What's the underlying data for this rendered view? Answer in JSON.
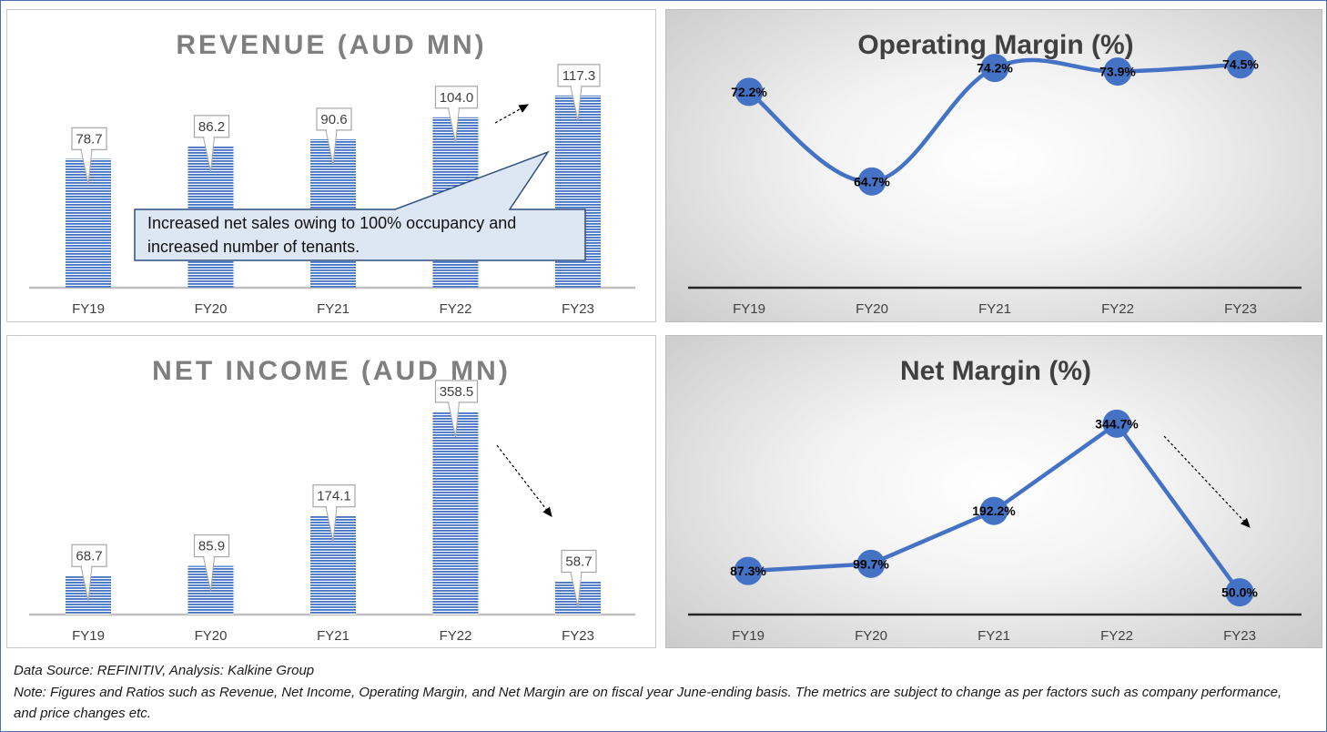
{
  "colors": {
    "bar": "#4472c4",
    "line": "#4472c4",
    "callout_fill": "#dce7f3",
    "callout_border": "#2f4f7f",
    "title_gray": "#7f7f7f",
    "title_dark": "#404040"
  },
  "chart_data": [
    {
      "type": "bar",
      "title": "REVENUE (AUD MN)",
      "categories": [
        "FY19",
        "FY20",
        "FY21",
        "FY22",
        "FY23"
      ],
      "values": [
        78.7,
        86.2,
        90.6,
        104.0,
        117.3
      ],
      "labels": [
        "78.7",
        "86.2",
        "90.6",
        "104.0",
        "117.3"
      ],
      "ylim": [
        0,
        120
      ],
      "grid": false,
      "annotation": "Increased net sales owing to 100% occupancy and increased number of tenants.",
      "annotation_lines": [
        "Increased net sales owing to 100% occupancy and",
        "increased number of tenants."
      ]
    },
    {
      "type": "line",
      "title": "Operating Margin (%)",
      "categories": [
        "FY19",
        "FY20",
        "FY21",
        "FY22",
        "FY23"
      ],
      "values": [
        72.2,
        64.7,
        74.2,
        73.9,
        74.5
      ],
      "labels": [
        "72.2%",
        "64.7%",
        "74.2%",
        "73.9%",
        "74.5%"
      ],
      "ylim": [
        60,
        76
      ],
      "grid": false
    },
    {
      "type": "bar",
      "title": "NET INCOME (AUD MN)",
      "categories": [
        "FY19",
        "FY20",
        "FY21",
        "FY22",
        "FY23"
      ],
      "values": [
        68.7,
        85.9,
        174.1,
        358.5,
        58.7
      ],
      "labels": [
        "68.7",
        "85.9",
        "174.1",
        "358.5",
        "58.7"
      ],
      "ylim": [
        0,
        360
      ],
      "grid": false
    },
    {
      "type": "line",
      "title": "Net Margin (%)",
      "categories": [
        "FY19",
        "FY20",
        "FY21",
        "FY22",
        "FY23"
      ],
      "values": [
        87.3,
        99.7,
        192.2,
        344.7,
        50.0
      ],
      "labels": [
        "87.3%",
        "99.7%",
        "192.2%",
        "344.7%",
        "50.0%"
      ],
      "ylim": [
        0,
        350
      ],
      "grid": false
    }
  ],
  "footer": {
    "source": "Data Source: REFINITIV, Analysis: Kalkine Group",
    "note": "Note: Figures and Ratios such as Revenue, Net Income, Operating Margin, and Net Margin are on fiscal year June-ending basis. The metrics are subject to change as per factors such as company performance, and price changes etc."
  }
}
